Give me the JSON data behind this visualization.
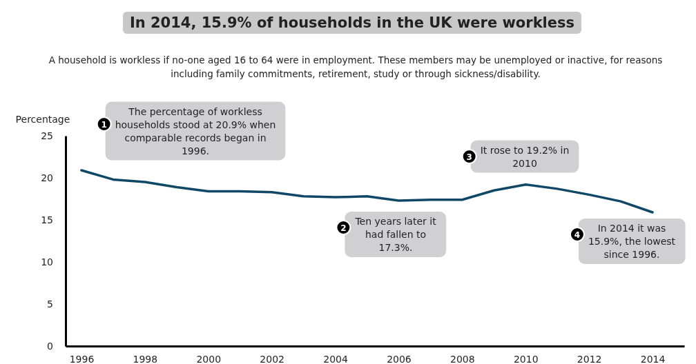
{
  "chart_data": {
    "type": "line",
    "title": "In 2014, 15.9% of households in the UK were workless",
    "subtitle": "A household is workless if no-one aged 16 to 64 were in employment. These members may be unemployed or inactive, for reasons including family commitments, retirement, study or through sickness/disability.",
    "ylabel": "Percentage",
    "x": [
      1996,
      1997,
      1998,
      1999,
      2000,
      2001,
      2002,
      2003,
      2004,
      2005,
      2006,
      2007,
      2008,
      2009,
      2010,
      2011,
      2012,
      2013,
      2014
    ],
    "series": [
      {
        "color": "#0f4866",
        "values": [
          20.9,
          19.8,
          19.5,
          18.9,
          18.4,
          18.4,
          18.3,
          17.8,
          17.7,
          17.8,
          17.3,
          17.4,
          17.4,
          18.5,
          19.2,
          18.7,
          18.0,
          17.2,
          15.9
        ]
      }
    ],
    "xlim": [
      1995.5,
      2015
    ],
    "xticks": [
      1996,
      1998,
      2000,
      2002,
      2004,
      2006,
      2008,
      2010,
      2012,
      2014
    ],
    "ylim": [
      0,
      25
    ],
    "yticks": [
      0,
      5,
      10,
      15,
      20,
      25
    ],
    "grid": false,
    "marker": "none",
    "line_style": "solid",
    "annotations": [
      "1",
      "The percentage of workless households stood at 20.9% when comparable records began in 1996.",
      "2",
      "Ten years later it had fallen to 17.3%.",
      "3",
      "It rose to 19.2% in 2010",
      "4",
      "In 2014 it was 15.9%, the lowest since 1996."
    ]
  }
}
